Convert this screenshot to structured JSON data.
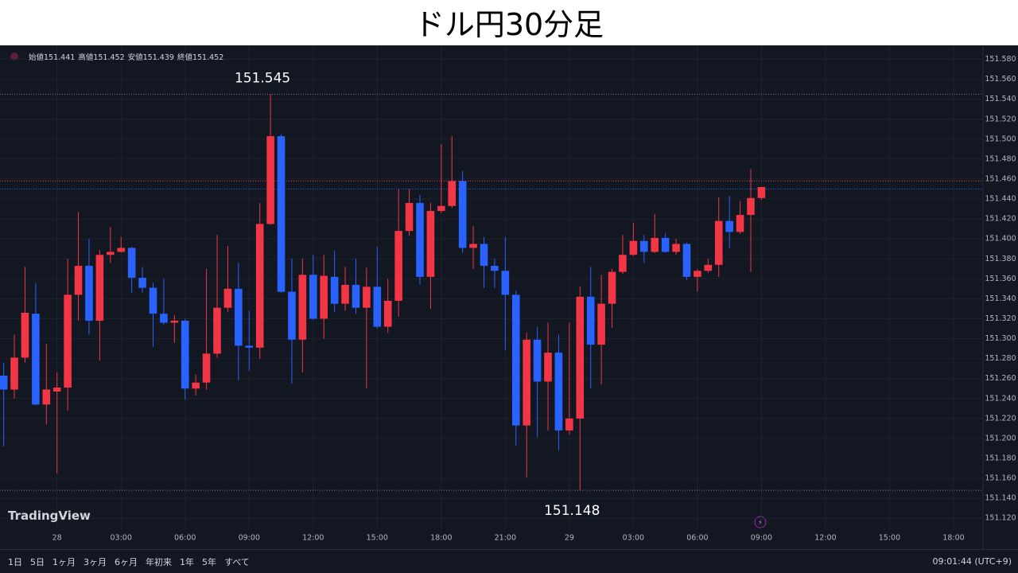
{
  "header": {
    "title": "ドル円30分足"
  },
  "chart_data": {
    "type": "candlestick",
    "ohlc_labels": [
      "始値",
      "高値",
      "安値",
      "終値"
    ],
    "open": [
      151.263,
      151.249,
      151.281,
      151.325,
      151.234,
      151.247,
      151.251,
      151.344,
      151.373,
      151.318,
      151.384,
      151.387,
      151.391,
      151.361,
      151.351,
      151.325,
      151.316,
      151.318,
      151.25,
      151.256,
      151.285,
      151.331,
      151.35,
      151.293,
      151.291,
      151.415,
      151.503,
      151.347,
      151.299,
      151.364,
      151.32,
      151.362,
      151.335,
      151.354,
      151.331,
      151.352,
      151.312,
      151.338,
      151.408,
      151.436,
      151.362,
      151.428,
      151.433,
      151.458,
      151.391,
      151.395,
      151.373,
      151.368,
      151.344,
      151.213,
      151.299,
      151.257,
      151.286,
      151.208,
      151.22,
      151.342,
      151.294,
      151.335,
      151.367,
      151.384,
      151.398,
      151.387,
      151.401,
      151.387,
      151.395,
      151.362,
      151.368,
      151.374,
      151.418,
      151.407,
      151.424,
      151.441
    ],
    "high": [
      151.276,
      151.304,
      151.372,
      151.356,
      151.295,
      151.266,
      151.38,
      151.427,
      151.4,
      151.389,
      151.412,
      151.402,
      151.392,
      151.372,
      151.356,
      151.36,
      151.324,
      151.32,
      151.264,
      151.37,
      151.404,
      151.393,
      151.376,
      151.328,
      151.436,
      151.545,
      151.505,
      151.38,
      151.38,
      151.384,
      151.384,
      151.388,
      151.372,
      151.38,
      151.371,
      151.392,
      151.36,
      151.45,
      151.45,
      151.444,
      151.436,
      151.495,
      151.503,
      151.468,
      151.413,
      151.402,
      151.38,
      151.402,
      151.348,
      151.306,
      151.312,
      151.316,
      151.304,
      151.316,
      151.352,
      151.372,
      151.364,
      151.37,
      151.404,
      151.416,
      151.404,
      151.425,
      151.406,
      151.4,
      151.396,
      151.37,
      151.38,
      151.442,
      151.443,
      151.438,
      151.47,
      151.452
    ],
    "low": [
      151.192,
      151.24,
      151.276,
      151.233,
      151.214,
      151.165,
      151.228,
      151.318,
      151.304,
      151.278,
      151.376,
      151.386,
      151.346,
      151.346,
      151.292,
      151.314,
      151.296,
      151.239,
      151.243,
      151.249,
      151.281,
      151.327,
      151.258,
      151.268,
      151.28,
      151.414,
      151.346,
      151.255,
      151.266,
      151.319,
      151.3,
      151.327,
      151.328,
      151.325,
      151.25,
      151.31,
      151.306,
      151.322,
      151.403,
      151.354,
      151.33,
      151.426,
      151.431,
      151.386,
      151.37,
      151.351,
      151.351,
      151.288,
      151.193,
      151.161,
      151.201,
      151.208,
      151.188,
      151.204,
      151.148,
      151.25,
      151.254,
      151.311,
      151.365,
      151.383,
      151.376,
      151.386,
      151.386,
      151.384,
      151.359,
      151.347,
      151.366,
      151.362,
      151.391,
      151.405,
      151.367,
      151.439
    ],
    "close": [
      151.249,
      151.281,
      151.326,
      151.234,
      151.249,
      151.251,
      151.344,
      151.373,
      151.318,
      151.384,
      151.387,
      151.391,
      151.361,
      151.351,
      151.325,
      151.316,
      151.318,
      151.25,
      151.256,
      151.285,
      151.331,
      151.35,
      151.293,
      151.291,
      151.415,
      151.503,
      151.347,
      151.299,
      151.364,
      151.32,
      151.363,
      151.335,
      151.354,
      151.331,
      151.352,
      151.312,
      151.338,
      151.408,
      151.436,
      151.362,
      151.428,
      151.433,
      151.458,
      151.391,
      151.395,
      151.373,
      151.368,
      151.344,
      151.213,
      151.299,
      151.257,
      151.286,
      151.208,
      151.22,
      151.342,
      151.294,
      151.335,
      151.367,
      151.384,
      151.398,
      151.387,
      151.401,
      151.387,
      151.395,
      151.362,
      151.368,
      151.374,
      151.418,
      151.407,
      151.424,
      151.441,
      151.452
    ],
    "up_color": "#f23645",
    "down_color": "#2962ff",
    "ylim": [
      151.109,
      151.594
    ],
    "yticks": [
      {
        "value": 151.12,
        "label": "151.120"
      },
      {
        "value": 151.14,
        "label": "151.140"
      },
      {
        "value": 151.16,
        "label": "151.160"
      },
      {
        "value": 151.18,
        "label": "151.180"
      },
      {
        "value": 151.2,
        "label": "151.200"
      },
      {
        "value": 151.22,
        "label": "151.220"
      },
      {
        "value": 151.24,
        "label": "151.240"
      },
      {
        "value": 151.26,
        "label": "151.260"
      },
      {
        "value": 151.28,
        "label": "151.280"
      },
      {
        "value": 151.3,
        "label": "151.300"
      },
      {
        "value": 151.32,
        "label": "151.320"
      },
      {
        "value": 151.34,
        "label": "151.340"
      },
      {
        "value": 151.36,
        "label": "151.360"
      },
      {
        "value": 151.38,
        "label": "151.380"
      },
      {
        "value": 151.4,
        "label": "151.400"
      },
      {
        "value": 151.42,
        "label": "151.420"
      },
      {
        "value": 151.44,
        "label": "151.440"
      },
      {
        "value": 151.46,
        "label": "151.460"
      },
      {
        "value": 151.48,
        "label": "151.480"
      },
      {
        "value": 151.5,
        "label": "151.500"
      },
      {
        "value": 151.52,
        "label": "151.520"
      },
      {
        "value": 151.54,
        "label": "151.540"
      },
      {
        "value": 151.56,
        "label": "151.560"
      },
      {
        "value": 151.58,
        "label": "151.580"
      }
    ],
    "xticks": [
      {
        "value": 5,
        "label": "28"
      },
      {
        "value": 11,
        "label": "03:00"
      },
      {
        "value": 17,
        "label": "06:00"
      },
      {
        "value": 23,
        "label": "09:00"
      },
      {
        "value": 29,
        "label": "12:00"
      },
      {
        "value": 35,
        "label": "15:00"
      },
      {
        "value": 41,
        "label": "18:00"
      },
      {
        "value": 47,
        "label": "21:00"
      },
      {
        "value": 53,
        "label": "29"
      },
      {
        "value": 59,
        "label": "03:00"
      },
      {
        "value": 65,
        "label": "06:00"
      },
      {
        "value": 71,
        "label": "09:00"
      },
      {
        "value": 77,
        "label": "12:00"
      },
      {
        "value": 83,
        "label": "15:00"
      },
      {
        "value": 89,
        "label": "18:00"
      }
    ],
    "grid": true,
    "price_lines": [
      {
        "value": 151.458,
        "color": "#f23645"
      },
      {
        "value": 151.45,
        "color": "#2962ff"
      }
    ],
    "high_mark": {
      "index": 25
    },
    "low_mark": {
      "index": 54
    }
  },
  "branding": "TradingView",
  "toolbar": {
    "ranges": [
      "1日",
      "5日",
      "1ヶ月",
      "3ヶ月",
      "6ヶ月",
      "年初来",
      "1年",
      "5年",
      "すべて"
    ],
    "clock": "09:01:44 (UTC+9)"
  }
}
